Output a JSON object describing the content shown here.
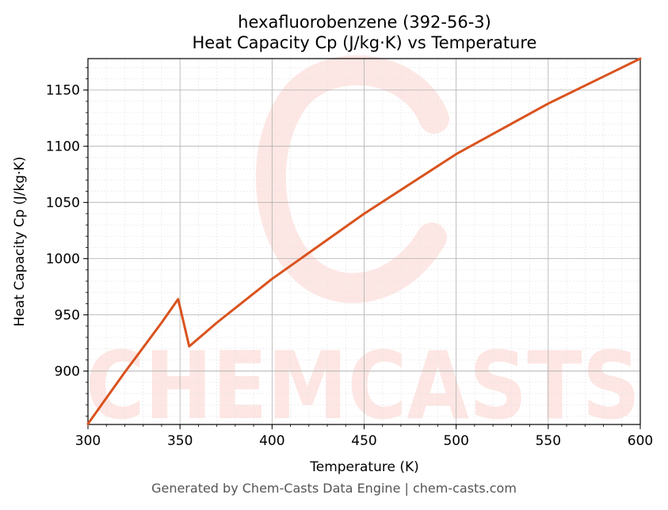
{
  "chart_data": {
    "type": "line",
    "title_line1": "hexafluorobenzene (392-56-3)",
    "title_line2": "Heat Capacity Cp (J/kg·K) vs Temperature",
    "xlabel": "Temperature (K)",
    "ylabel": "Heat Capacity Cp (J/kg·K)",
    "xlim": [
      300,
      600
    ],
    "ylim": [
      852.5,
      1178
    ],
    "x_ticks": [
      300,
      350,
      400,
      450,
      500,
      550,
      600
    ],
    "y_ticks": [
      900,
      950,
      1000,
      1050,
      1100,
      1150
    ],
    "grid": true,
    "series": [
      {
        "color": "#d9531e",
        "x": [
          300,
          310,
          320,
          330,
          340,
          349,
          355,
          370,
          400,
          450,
          500,
          550,
          600
        ],
        "y": [
          853,
          876,
          899,
          921,
          943,
          964,
          922,
          943,
          982,
          1040,
          1093,
          1138,
          1178
        ]
      }
    ],
    "watermark": "CHEMCASTS"
  },
  "footer": "Generated by Chem-Casts Data Engine | chem-casts.com"
}
